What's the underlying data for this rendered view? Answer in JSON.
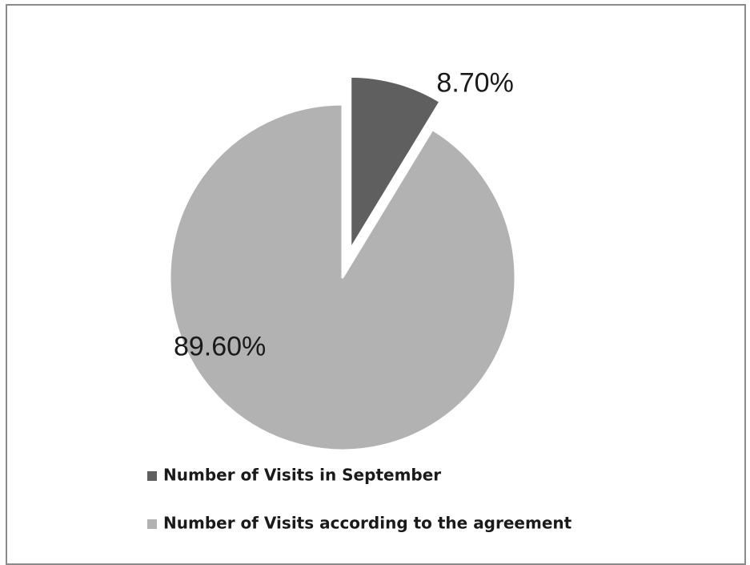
{
  "chart_data": {
    "type": "pie",
    "title": "",
    "categories": [
      "Number of Visits in September",
      "Number of Visits according to the agreement"
    ],
    "values": [
      8.7,
      89.6
    ],
    "data_labels": [
      "8.70%",
      "89.60%"
    ],
    "colors": [
      "#5f5f5f",
      "#b2b2b2"
    ],
    "exploded_slice": "Number of Visits in September",
    "legend_position": "bottom"
  }
}
